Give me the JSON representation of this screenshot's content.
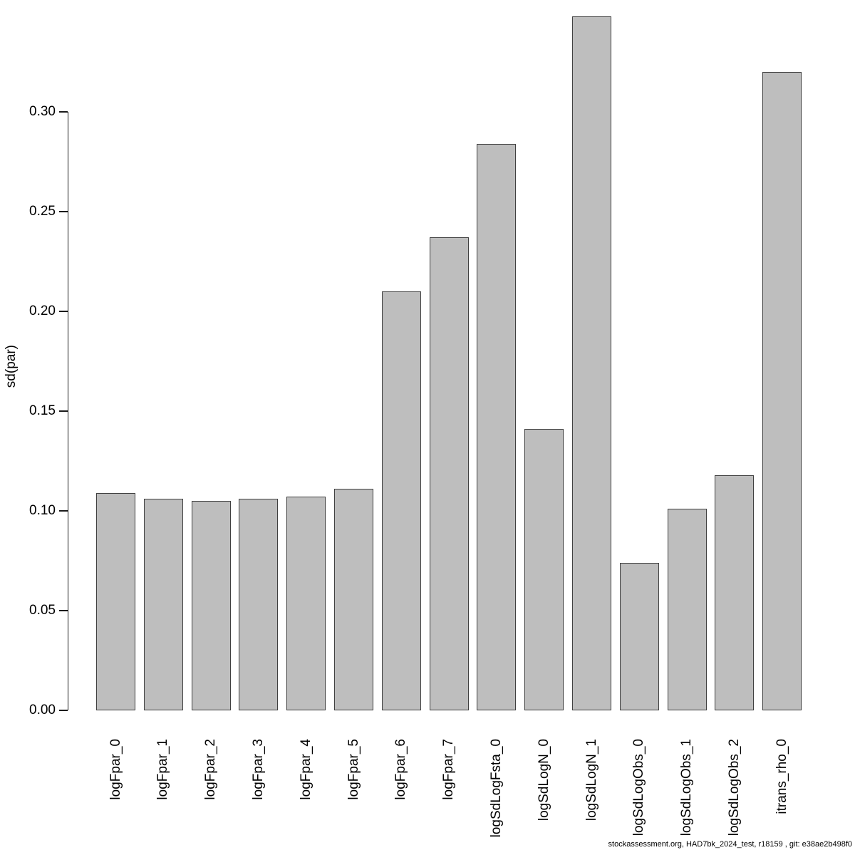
{
  "chart_data": {
    "type": "bar",
    "title": "",
    "xlabel": "",
    "ylabel": "sd(par)",
    "categories": [
      "logFpar_0",
      "logFpar_1",
      "logFpar_2",
      "logFpar_3",
      "logFpar_4",
      "logFpar_5",
      "logFpar_6",
      "logFpar_7",
      "logSdLogFsta_0",
      "logSdLogN_0",
      "logSdLogN_1",
      "logSdLogObs_0",
      "logSdLogObs_1",
      "logSdLogObs_2",
      "itrans_rho_0"
    ],
    "values": [
      0.109,
      0.106,
      0.105,
      0.106,
      0.107,
      0.111,
      0.21,
      0.237,
      0.284,
      0.141,
      0.348,
      0.074,
      0.101,
      0.118,
      0.32
    ],
    "ylim": [
      0,
      0.362
    ],
    "yticks": [
      "0.00",
      "0.05",
      "0.10",
      "0.15",
      "0.20",
      "0.25",
      "0.30"
    ],
    "grid": false,
    "legend_position": "none",
    "bar_fill_color": "#bebebe",
    "bar_border_color": "#404040",
    "axis_color": "#1a1a1a",
    "text_color": "#000000"
  },
  "footer": {
    "text": "stockassessment.org, HAD7bk_2024_test, r18159 , git: e38ae2b498f0"
  }
}
